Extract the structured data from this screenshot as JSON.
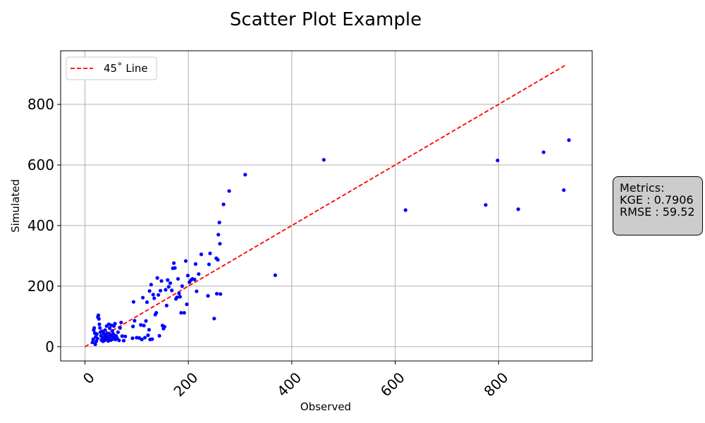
{
  "chart_data": {
    "type": "scatter",
    "title": "Scatter Plot Example",
    "xlabel": "Observed",
    "ylabel": "Simulated",
    "xlim": [
      -47,
      981
    ],
    "ylim": [
      -47,
      977
    ],
    "xticks": [
      0,
      200,
      400,
      600,
      800
    ],
    "yticks": [
      0,
      200,
      400,
      600,
      800
    ],
    "grid": true,
    "legend": {
      "placement": "upper-left",
      "label": "45˚ Line"
    },
    "colors": {
      "points": "#0000ff",
      "line": "#ff0000"
    },
    "reference_line": {
      "style": "dashed",
      "x": [
        0,
        930
      ],
      "y": [
        0,
        930
      ]
    },
    "points": [
      [
        15,
        15
      ],
      [
        16,
        25
      ],
      [
        17,
        55
      ],
      [
        18,
        62
      ],
      [
        19,
        45
      ],
      [
        20,
        8
      ],
      [
        21,
        33
      ],
      [
        22,
        18
      ],
      [
        23,
        42
      ],
      [
        24,
        27
      ],
      [
        25,
        98
      ],
      [
        26,
        104
      ],
      [
        27,
        92
      ],
      [
        28,
        74
      ],
      [
        29,
        62
      ],
      [
        30,
        48
      ],
      [
        31,
        36
      ],
      [
        32,
        22
      ],
      [
        33,
        51
      ],
      [
        34,
        29
      ],
      [
        35,
        18
      ],
      [
        36,
        44
      ],
      [
        37,
        30
      ],
      [
        38,
        21
      ],
      [
        39,
        55
      ],
      [
        40,
        37
      ],
      [
        41,
        26
      ],
      [
        42,
        68
      ],
      [
        43,
        45
      ],
      [
        44,
        33
      ],
      [
        45,
        19
      ],
      [
        46,
        74
      ],
      [
        47,
        28
      ],
      [
        48,
        61
      ],
      [
        49,
        40
      ],
      [
        50,
        22
      ],
      [
        51,
        71
      ],
      [
        52,
        35
      ],
      [
        53,
        52
      ],
      [
        54,
        25
      ],
      [
        55,
        42
      ],
      [
        56,
        68
      ],
      [
        57,
        30
      ],
      [
        58,
        76
      ],
      [
        59,
        24
      ],
      [
        60,
        36
      ],
      [
        62,
        29
      ],
      [
        64,
        48
      ],
      [
        66,
        21
      ],
      [
        68,
        62
      ],
      [
        70,
        80
      ],
      [
        72,
        35
      ],
      [
        75,
        20
      ],
      [
        78,
        34
      ],
      [
        92,
        28
      ],
      [
        93,
        67
      ],
      [
        94,
        148
      ],
      [
        96,
        86
      ],
      [
        100,
        30
      ],
      [
        105,
        29
      ],
      [
        108,
        72
      ],
      [
        110,
        24
      ],
      [
        112,
        162
      ],
      [
        114,
        70
      ],
      [
        116,
        30
      ],
      [
        118,
        85
      ],
      [
        120,
        147
      ],
      [
        122,
        38
      ],
      [
        124,
        56
      ],
      [
        125,
        184
      ],
      [
        126,
        24
      ],
      [
        128,
        205
      ],
      [
        130,
        25
      ],
      [
        132,
        172
      ],
      [
        134,
        160
      ],
      [
        136,
        106
      ],
      [
        138,
        112
      ],
      [
        140,
        227
      ],
      [
        142,
        171
      ],
      [
        144,
        36
      ],
      [
        146,
        185
      ],
      [
        148,
        217
      ],
      [
        150,
        70
      ],
      [
        152,
        60
      ],
      [
        154,
        66
      ],
      [
        156,
        188
      ],
      [
        158,
        136
      ],
      [
        160,
        220
      ],
      [
        162,
        198
      ],
      [
        165,
        210
      ],
      [
        168,
        186
      ],
      [
        170,
        259
      ],
      [
        172,
        276
      ],
      [
        174,
        260
      ],
      [
        176,
        158
      ],
      [
        178,
        163
      ],
      [
        180,
        224
      ],
      [
        182,
        176
      ],
      [
        184,
        165
      ],
      [
        186,
        112
      ],
      [
        188,
        200
      ],
      [
        192,
        112
      ],
      [
        195,
        283
      ],
      [
        197,
        140
      ],
      [
        199,
        235
      ],
      [
        202,
        213
      ],
      [
        205,
        220
      ],
      [
        208,
        224
      ],
      [
        212,
        222
      ],
      [
        214,
        273
      ],
      [
        216,
        183
      ],
      [
        220,
        240
      ],
      [
        225,
        305
      ],
      [
        238,
        168
      ],
      [
        240,
        272
      ],
      [
        242,
        308
      ],
      [
        250,
        93
      ],
      [
        254,
        292
      ],
      [
        255,
        175
      ],
      [
        257,
        287
      ],
      [
        258,
        370
      ],
      [
        260,
        410
      ],
      [
        261,
        340
      ],
      [
        262,
        174
      ],
      [
        268,
        470
      ],
      [
        279,
        514
      ],
      [
        310,
        568
      ],
      [
        368,
        236
      ],
      [
        462,
        617
      ],
      [
        620,
        451
      ],
      [
        775,
        468
      ],
      [
        798,
        615
      ],
      [
        838,
        454
      ],
      [
        887,
        642
      ],
      [
        926,
        517
      ],
      [
        936,
        682
      ]
    ]
  },
  "metrics": {
    "header": "Metrics:",
    "kge": "KGE : 0.7906",
    "rmse": "RMSE : 59.52"
  }
}
